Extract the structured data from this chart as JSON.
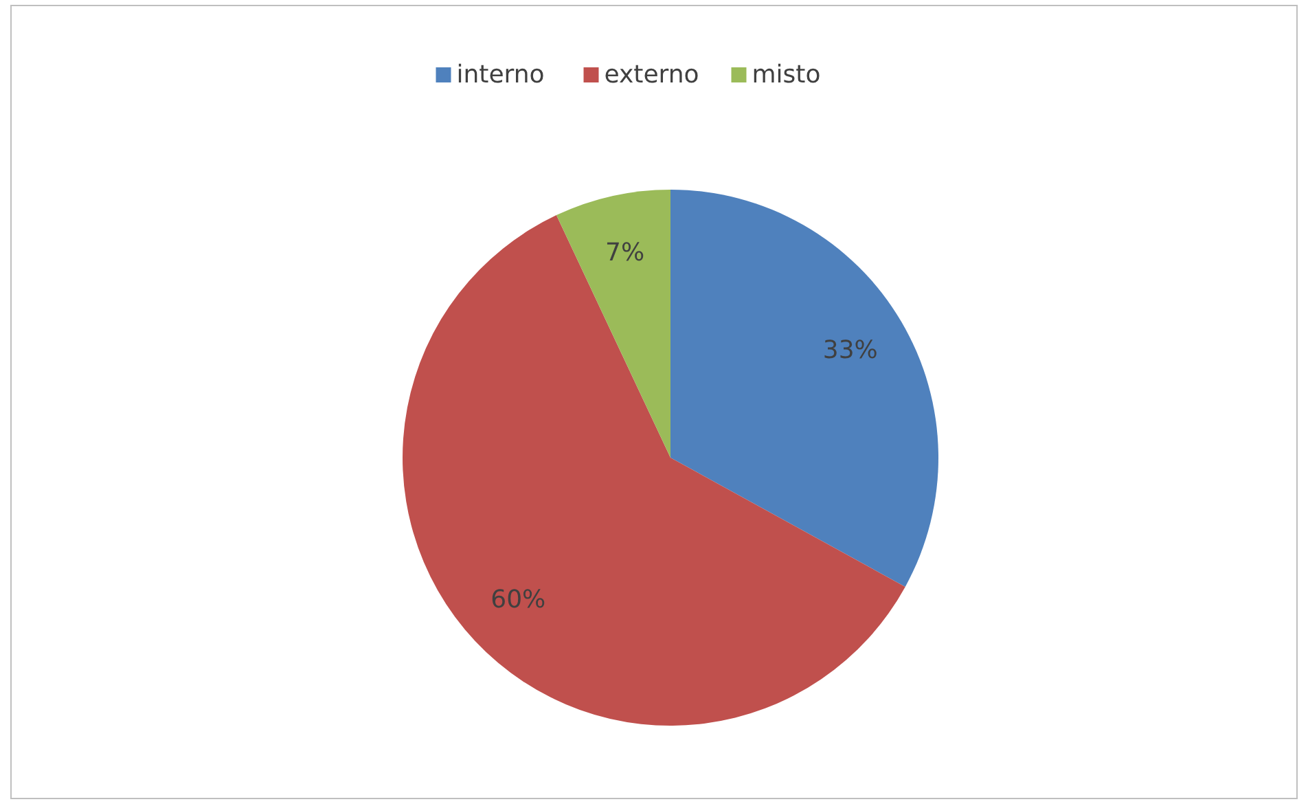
{
  "chart_data": {
    "type": "pie",
    "categories": [
      "interno",
      "externo",
      "misto"
    ],
    "values": [
      33,
      60,
      7
    ],
    "colors": [
      "#4f81bd",
      "#c0504d",
      "#9bbb59"
    ],
    "value_labels": [
      "33%",
      "60%",
      "7%"
    ],
    "legend": "top"
  }
}
